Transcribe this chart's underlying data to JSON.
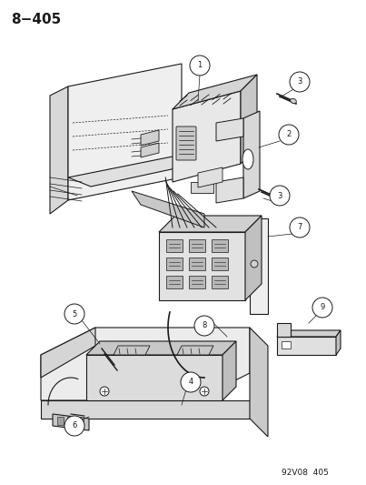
{
  "title": "8−405",
  "footer": "92V08  405",
  "bg": "#ffffff",
  "lc": "#1a1a1a",
  "title_fontsize": 11,
  "footer_fontsize": 6.5
}
